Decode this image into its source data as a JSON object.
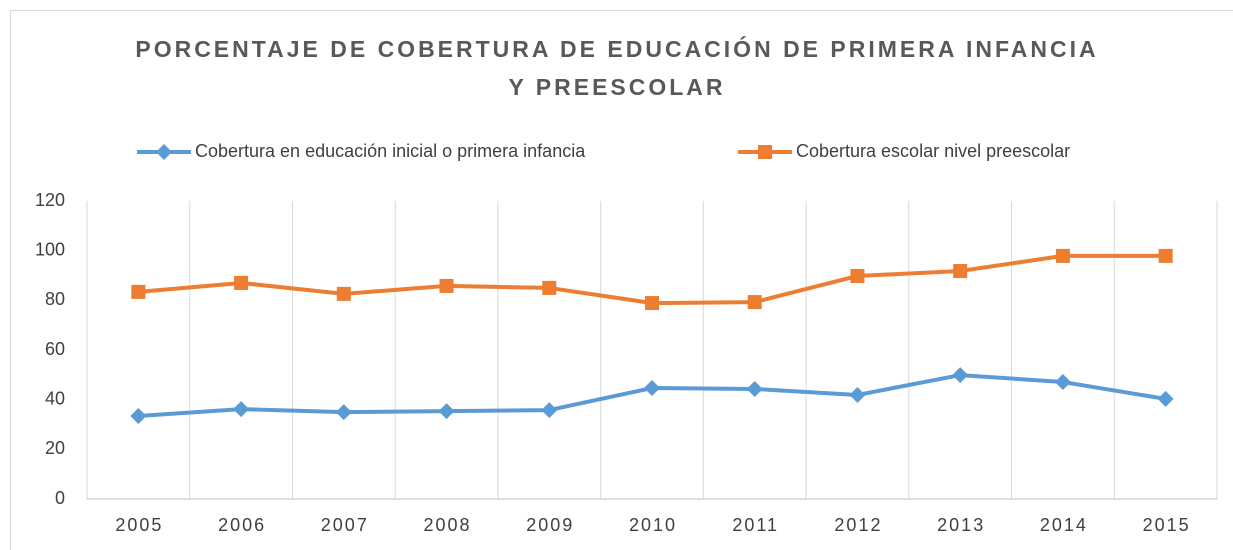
{
  "chart_data": {
    "type": "line",
    "title": "PORCENTAJE DE COBERTURA DE EDUCACIÓN DE PRIMERA INFANCIA Y PREESCOLAR",
    "categories": [
      "2005",
      "2006",
      "2007",
      "2008",
      "2009",
      "2010",
      "2011",
      "2012",
      "2013",
      "2014",
      "2015"
    ],
    "series": [
      {
        "name": "Cobertura en educación inicial o primera infancia",
        "color": "#5b9bd5",
        "marker": "diamond",
        "values": [
          33.4,
          36.2,
          35,
          35.4,
          35.8,
          44.7,
          44.3,
          41.9,
          49.9,
          47.1,
          40.3
        ]
      },
      {
        "name": "Cobertura escolar nivel preescolar",
        "color": "#ed7d31",
        "marker": "square",
        "values": [
          83.4,
          87,
          82.6,
          85.8,
          85,
          78.9,
          79.3,
          89.8,
          91.8,
          97.9,
          97.9
        ]
      }
    ],
    "ylim": [
      0,
      120
    ],
    "yticks": [
      0,
      20,
      40,
      60,
      80,
      100,
      120
    ],
    "legend": "top"
  }
}
